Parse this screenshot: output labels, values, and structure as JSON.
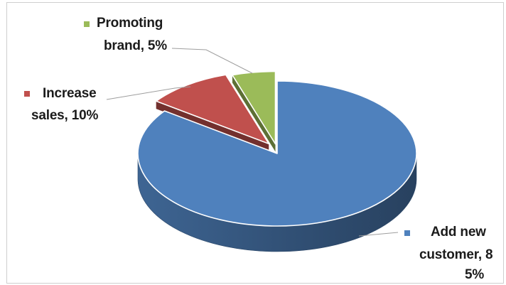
{
  "chart_data": {
    "type": "pie",
    "style": "3d exploded",
    "title": "",
    "slices": [
      {
        "label": "Add new customer",
        "value": 85,
        "color": "#4f81bd",
        "display": [
          "Add new",
          "customer, 8",
          "5%"
        ]
      },
      {
        "label": "Increase sales",
        "value": 10,
        "color": "#c0504d",
        "display": [
          "Increase",
          "sales, 10%"
        ]
      },
      {
        "label": "Promoting brand",
        "value": 5,
        "color": "#9bbb59",
        "display": [
          "Promoting",
          "brand, 5%"
        ]
      }
    ],
    "legend": "none",
    "data_labels": "outside with leader lines"
  }
}
